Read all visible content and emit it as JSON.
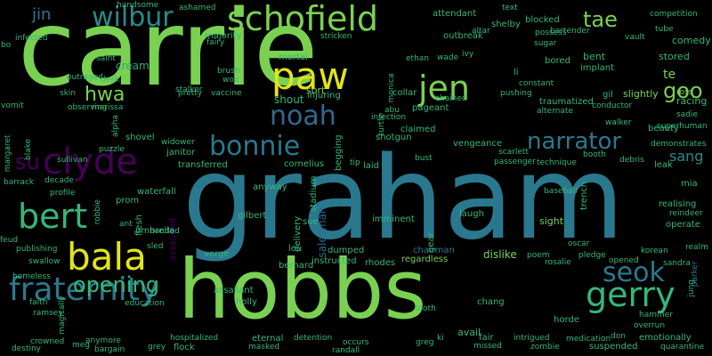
{
  "palette": {
    "background": "#000000",
    "yellow": "#e2e418",
    "green_light": "#7ad151",
    "green": "#35b779",
    "teal": "#22a884",
    "blue_teal": "#2a788e",
    "blue": "#31688e",
    "indigo": "#414487",
    "purple": "#440154"
  },
  "words": [
    {
      "text": "carrie",
      "color": "#7ad151"
    },
    {
      "text": "graham",
      "color": "#2a788e"
    },
    {
      "text": "hobbs",
      "color": "#7ad151"
    },
    {
      "text": "schofield",
      "color": "#7ad151"
    },
    {
      "text": "wilbur",
      "color": "#2a8a8a"
    },
    {
      "text": "jin",
      "color": "#2a788e"
    },
    {
      "text": "tae",
      "color": "#7ad151"
    },
    {
      "text": "paw",
      "color": "#e2e418"
    },
    {
      "text": "jen",
      "color": "#7ad151"
    },
    {
      "text": "noah",
      "color": "#31688e"
    },
    {
      "text": "clyde",
      "color": "#440154"
    },
    {
      "text": "bonnie",
      "color": "#2a788e"
    },
    {
      "text": "bert",
      "color": "#35b779"
    },
    {
      "text": "bala",
      "color": "#e2e418"
    },
    {
      "text": "fraternity",
      "color": "#2a788e"
    },
    {
      "text": "gerry",
      "color": "#35b779"
    },
    {
      "text": "narrator",
      "color": "#2a788e"
    },
    {
      "text": "seok",
      "color": "#2a788e"
    },
    {
      "text": "opening",
      "color": "#35b779"
    },
    {
      "text": "goo",
      "color": "#7ad151"
    },
    {
      "text": "hwa",
      "color": "#7ad151"
    },
    {
      "text": "su",
      "color": "#440154"
    },
    {
      "text": "sang",
      "color": "#2a8a8a"
    },
    {
      "text": "te",
      "color": "#7ad151"
    },
    {
      "text": "cream",
      "color": "#22a884"
    },
    {
      "text": "sort",
      "color": "#7ad151"
    },
    {
      "text": "shout",
      "color": "#35b779"
    },
    {
      "text": "mortal",
      "color": "#35b779"
    },
    {
      "text": "competition",
      "color": "#35b779"
    },
    {
      "text": "comedy",
      "color": "#35b779"
    },
    {
      "text": "stored",
      "color": "#35b779"
    },
    {
      "text": "racing",
      "color": "#35b779"
    },
    {
      "text": "implant",
      "color": "#35b779"
    },
    {
      "text": "bored",
      "color": "#35b779"
    },
    {
      "text": "bent",
      "color": "#35b779"
    },
    {
      "text": "ross",
      "color": "#7ad151"
    },
    {
      "text": "slightly",
      "color": "#7ad151"
    },
    {
      "text": "gil",
      "color": "#35b779"
    },
    {
      "text": "conductor",
      "color": "#35b779"
    },
    {
      "text": "sadie",
      "color": "#35b779"
    },
    {
      "text": "superhuman",
      "color": "#35b779"
    },
    {
      "text": "beauty",
      "color": "#35b779"
    },
    {
      "text": "demonstrates",
      "color": "#35b779"
    },
    {
      "text": "debris",
      "color": "#35b779"
    },
    {
      "text": "leak",
      "color": "#35b779"
    },
    {
      "text": "mia",
      "color": "#35b779"
    },
    {
      "text": "realising",
      "color": "#35b779"
    },
    {
      "text": "reindeer",
      "color": "#35b779"
    },
    {
      "text": "operate",
      "color": "#35b779"
    },
    {
      "text": "realm",
      "color": "#35b779"
    },
    {
      "text": "parker",
      "color": "#2a788e"
    },
    {
      "text": "sandra",
      "color": "#35b779"
    },
    {
      "text": "jung",
      "color": "#35b779"
    },
    {
      "text": "korean",
      "color": "#35b779"
    },
    {
      "text": "opened",
      "color": "#35b779"
    },
    {
      "text": "hammer",
      "color": "#35b779"
    },
    {
      "text": "overrun",
      "color": "#35b779"
    },
    {
      "text": "emotionally",
      "color": "#35b779"
    },
    {
      "text": "quarantine",
      "color": "#35b779"
    },
    {
      "text": "suspended",
      "color": "#35b779"
    },
    {
      "text": "medication",
      "color": "#35b779"
    },
    {
      "text": "don",
      "color": "#35b779"
    },
    {
      "text": "horde",
      "color": "#35b779"
    },
    {
      "text": "intrigued",
      "color": "#35b779"
    },
    {
      "text": "missed",
      "color": "#35b779"
    },
    {
      "text": "zombie",
      "color": "#35b779"
    },
    {
      "text": "fair",
      "color": "#35b779"
    },
    {
      "text": "avail",
      "color": "#35b779"
    },
    {
      "text": "greg",
      "color": "#35b779"
    },
    {
      "text": "ki",
      "color": "#35b779"
    },
    {
      "text": "chang",
      "color": "#35b779"
    },
    {
      "text": "tooth",
      "color": "#35b779"
    },
    {
      "text": "regardless",
      "color": "#7ad151"
    },
    {
      "text": "chairman",
      "color": "#2a788e"
    },
    {
      "text": "dislike",
      "color": "#7ad151"
    },
    {
      "text": "poem",
      "color": "#35b779"
    },
    {
      "text": "rosalie",
      "color": "#35b779"
    },
    {
      "text": "pledge",
      "color": "#35b779"
    },
    {
      "text": "oscar",
      "color": "#35b779"
    },
    {
      "text": "sight",
      "color": "#7ad151"
    },
    {
      "text": "baseball",
      "color": "#35b779"
    },
    {
      "text": "laugh",
      "color": "#35b779"
    },
    {
      "text": "gear",
      "color": "#35b779"
    },
    {
      "text": "imminent",
      "color": "#35b779"
    },
    {
      "text": "begging",
      "color": "#35b779"
    },
    {
      "text": "salesman",
      "color": "#31688e"
    },
    {
      "text": "rhodes",
      "color": "#35b779"
    },
    {
      "text": "dumped",
      "color": "#35b779"
    },
    {
      "text": "instructed",
      "color": "#35b779"
    },
    {
      "text": "bernard",
      "color": "#35b779"
    },
    {
      "text": "lou",
      "color": "#35b779"
    },
    {
      "text": "sue",
      "color": "#35b779"
    },
    {
      "text": "delivery",
      "color": "#35b779"
    },
    {
      "text": "stadium",
      "color": "#35b779"
    },
    {
      "text": "anyway",
      "color": "#35b779"
    },
    {
      "text": "gilbert",
      "color": "#35b779"
    },
    {
      "text": "verge",
      "color": "#35b779"
    },
    {
      "text": "assailant",
      "color": "#35b779"
    },
    {
      "text": "holly",
      "color": "#35b779"
    },
    {
      "text": "education",
      "color": "#35b779"
    },
    {
      "text": "eternal",
      "color": "#35b779"
    },
    {
      "text": "masked",
      "color": "#35b779"
    },
    {
      "text": "detention",
      "color": "#35b779"
    },
    {
      "text": "occurs",
      "color": "#35b779"
    },
    {
      "text": "randall",
      "color": "#35b779"
    },
    {
      "text": "hospitalized",
      "color": "#35b779"
    },
    {
      "text": "grey",
      "color": "#35b779"
    },
    {
      "text": "flock",
      "color": "#35b779"
    },
    {
      "text": "anymore",
      "color": "#35b779"
    },
    {
      "text": "bargain",
      "color": "#35b779"
    },
    {
      "text": "crowned",
      "color": "#35b779"
    },
    {
      "text": "meg",
      "color": "#35b779"
    },
    {
      "text": "destiny",
      "color": "#35b779"
    },
    {
      "text": "faith",
      "color": "#35b779"
    },
    {
      "text": "ramsey",
      "color": "#35b779"
    },
    {
      "text": "magically",
      "color": "#35b779"
    },
    {
      "text": "homeless",
      "color": "#35b779"
    },
    {
      "text": "swallow",
      "color": "#35b779"
    },
    {
      "text": "publishing",
      "color": "#35b779"
    },
    {
      "text": "feud",
      "color": "#35b779"
    },
    {
      "text": "robbie",
      "color": "#35b779"
    },
    {
      "text": "ant",
      "color": "#35b779"
    },
    {
      "text": "flesh",
      "color": "#35b779"
    },
    {
      "text": "sled",
      "color": "#35b779"
    },
    {
      "text": "assaulted",
      "color": "#440154"
    },
    {
      "text": "handed",
      "color": "#35b779"
    },
    {
      "text": "umbrella",
      "color": "#35b779"
    },
    {
      "text": "prom",
      "color": "#35b779"
    },
    {
      "text": "waterfall",
      "color": "#35b779"
    },
    {
      "text": "decade",
      "color": "#35b779"
    },
    {
      "text": "profile",
      "color": "#35b779"
    },
    {
      "text": "barrack",
      "color": "#35b779"
    },
    {
      "text": "blake",
      "color": "#35b779"
    },
    {
      "text": "margaret",
      "color": "#35b779"
    },
    {
      "text": "transferred",
      "color": "#35b779"
    },
    {
      "text": "janitor",
      "color": "#35b779"
    },
    {
      "text": "widower",
      "color": "#35b779"
    },
    {
      "text": "shovel",
      "color": "#35b779"
    },
    {
      "text": "puzzle",
      "color": "#35b779"
    },
    {
      "text": "sullivan",
      "color": "#35b779"
    },
    {
      "text": "alpha",
      "color": "#35b779"
    },
    {
      "text": "cornelius",
      "color": "#35b779"
    },
    {
      "text": "shotgun",
      "color": "#35b779"
    },
    {
      "text": "turtle",
      "color": "#35b779"
    },
    {
      "text": "claimed",
      "color": "#35b779"
    },
    {
      "text": "bust",
      "color": "#35b779"
    },
    {
      "text": "tip",
      "color": "#35b779"
    },
    {
      "text": "laid",
      "color": "#35b779"
    },
    {
      "text": "vengeance",
      "color": "#35b779"
    },
    {
      "text": "scarlett",
      "color": "#35b779"
    },
    {
      "text": "passenger",
      "color": "#35b779"
    },
    {
      "text": "technique",
      "color": "#35b779"
    },
    {
      "text": "booth",
      "color": "#35b779"
    },
    {
      "text": "trench",
      "color": "#35b779"
    },
    {
      "text": "walker",
      "color": "#35b779"
    },
    {
      "text": "alternate",
      "color": "#35b779"
    },
    {
      "text": "pageant",
      "color": "#35b779"
    },
    {
      "text": "chained",
      "color": "#35b779"
    },
    {
      "text": "collar",
      "color": "#35b779"
    },
    {
      "text": "abu",
      "color": "#35b779"
    },
    {
      "text": "infection",
      "color": "#35b779"
    },
    {
      "text": "injuring",
      "color": "#35b779"
    },
    {
      "text": "monica",
      "color": "#35b779"
    },
    {
      "text": "wade",
      "color": "#35b779"
    },
    {
      "text": "ivy",
      "color": "#35b779"
    },
    {
      "text": "ethan",
      "color": "#35b779"
    },
    {
      "text": "pushing",
      "color": "#35b779"
    },
    {
      "text": "constant",
      "color": "#35b779"
    },
    {
      "text": "traumatized",
      "color": "#35b779"
    },
    {
      "text": "li",
      "color": "#35b779"
    },
    {
      "text": "sugar",
      "color": "#35b779"
    },
    {
      "text": "possess",
      "color": "#35b779"
    },
    {
      "text": "bartender",
      "color": "#35b779"
    },
    {
      "text": "blocked",
      "color": "#35b779"
    },
    {
      "text": "shelby",
      "color": "#35b779"
    },
    {
      "text": "text",
      "color": "#35b779"
    },
    {
      "text": "altar",
      "color": "#35b779"
    },
    {
      "text": "outbreak",
      "color": "#35b779"
    },
    {
      "text": "attendant",
      "color": "#35b779"
    },
    {
      "text": "tube",
      "color": "#35b779"
    },
    {
      "text": "vault",
      "color": "#35b779"
    },
    {
      "text": "ashamed",
      "color": "#35b779"
    },
    {
      "text": "handsome",
      "color": "#35b779"
    },
    {
      "text": "majority",
      "color": "#35b779"
    },
    {
      "text": "fairy",
      "color": "#35b779"
    },
    {
      "text": "stricken",
      "color": "#35b779"
    },
    {
      "text": "infected",
      "color": "#35b779"
    },
    {
      "text": "bo",
      "color": "#35b779"
    },
    {
      "text": "saint",
      "color": "#35b779"
    },
    {
      "text": "outraged",
      "color": "#35b779"
    },
    {
      "text": "desk",
      "color": "#35b779"
    },
    {
      "text": "skin",
      "color": "#35b779"
    },
    {
      "text": "observing",
      "color": "#35b779"
    },
    {
      "text": "marissa",
      "color": "#35b779"
    },
    {
      "text": "vomit",
      "color": "#35b779"
    },
    {
      "text": "stalker",
      "color": "#35b779"
    },
    {
      "text": "brush",
      "color": "#35b779"
    },
    {
      "text": "woo",
      "color": "#35b779"
    },
    {
      "text": "pretty",
      "color": "#35b779"
    },
    {
      "text": "vaccine",
      "color": "#35b779"
    }
  ]
}
